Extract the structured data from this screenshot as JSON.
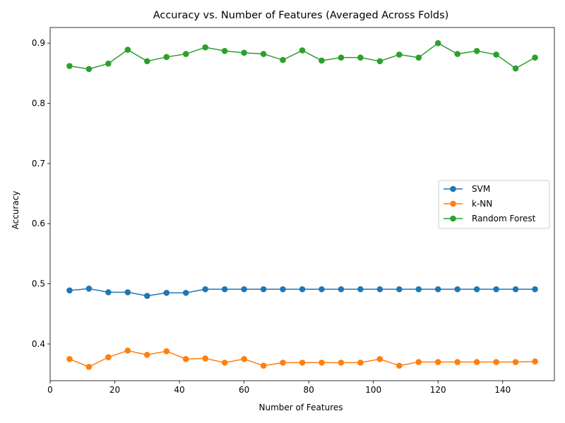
{
  "chart_data": {
    "type": "line",
    "title": "Accuracy vs. Number of Features (Averaged Across Folds)",
    "xlabel": "Number of Features",
    "ylabel": "Accuracy",
    "xlim": [
      0,
      156
    ],
    "ylim": [
      0.339,
      0.926
    ],
    "xticks": [
      0,
      20,
      40,
      60,
      80,
      100,
      120,
      140
    ],
    "yticks": [
      0.4,
      0.5,
      0.6,
      0.7,
      0.8,
      0.9
    ],
    "xtick_labels": [
      "0",
      "20",
      "40",
      "60",
      "80",
      "100",
      "120",
      "140"
    ],
    "ytick_labels": [
      "0.4",
      "0.5",
      "0.6",
      "0.7",
      "0.8",
      "0.9"
    ],
    "grid": false,
    "legend_position": "center-right",
    "x": [
      6,
      12,
      18,
      24,
      30,
      36,
      42,
      48,
      54,
      60,
      66,
      72,
      78,
      84,
      90,
      96,
      102,
      108,
      114,
      120,
      126,
      132,
      138,
      144,
      150
    ],
    "series": [
      {
        "name": "SVM",
        "color": "#1f77b4",
        "values": [
          0.489,
          0.492,
          0.486,
          0.486,
          0.48,
          0.485,
          0.485,
          0.491,
          0.491,
          0.491,
          0.491,
          0.491,
          0.491,
          0.491,
          0.491,
          0.491,
          0.491,
          0.491,
          0.491,
          0.491,
          0.491,
          0.491,
          0.491,
          0.491,
          0.491
        ]
      },
      {
        "name": "k-NN",
        "color": "#ff7f0e",
        "values": [
          0.375,
          0.362,
          0.378,
          0.389,
          0.382,
          0.388,
          0.375,
          0.376,
          0.369,
          0.375,
          0.364,
          0.369,
          0.369,
          0.369,
          0.369,
          0.369,
          0.375,
          0.364,
          0.37,
          0.37,
          0.37,
          0.37,
          0.37,
          0.37,
          0.371
        ]
      },
      {
        "name": "Random Forest",
        "color": "#2ca02c",
        "values": [
          0.862,
          0.857,
          0.866,
          0.889,
          0.87,
          0.877,
          0.882,
          0.893,
          0.887,
          0.884,
          0.882,
          0.872,
          0.888,
          0.871,
          0.876,
          0.876,
          0.87,
          0.881,
          0.876,
          0.9,
          0.882,
          0.887,
          0.881,
          0.858,
          0.876
        ]
      }
    ]
  }
}
